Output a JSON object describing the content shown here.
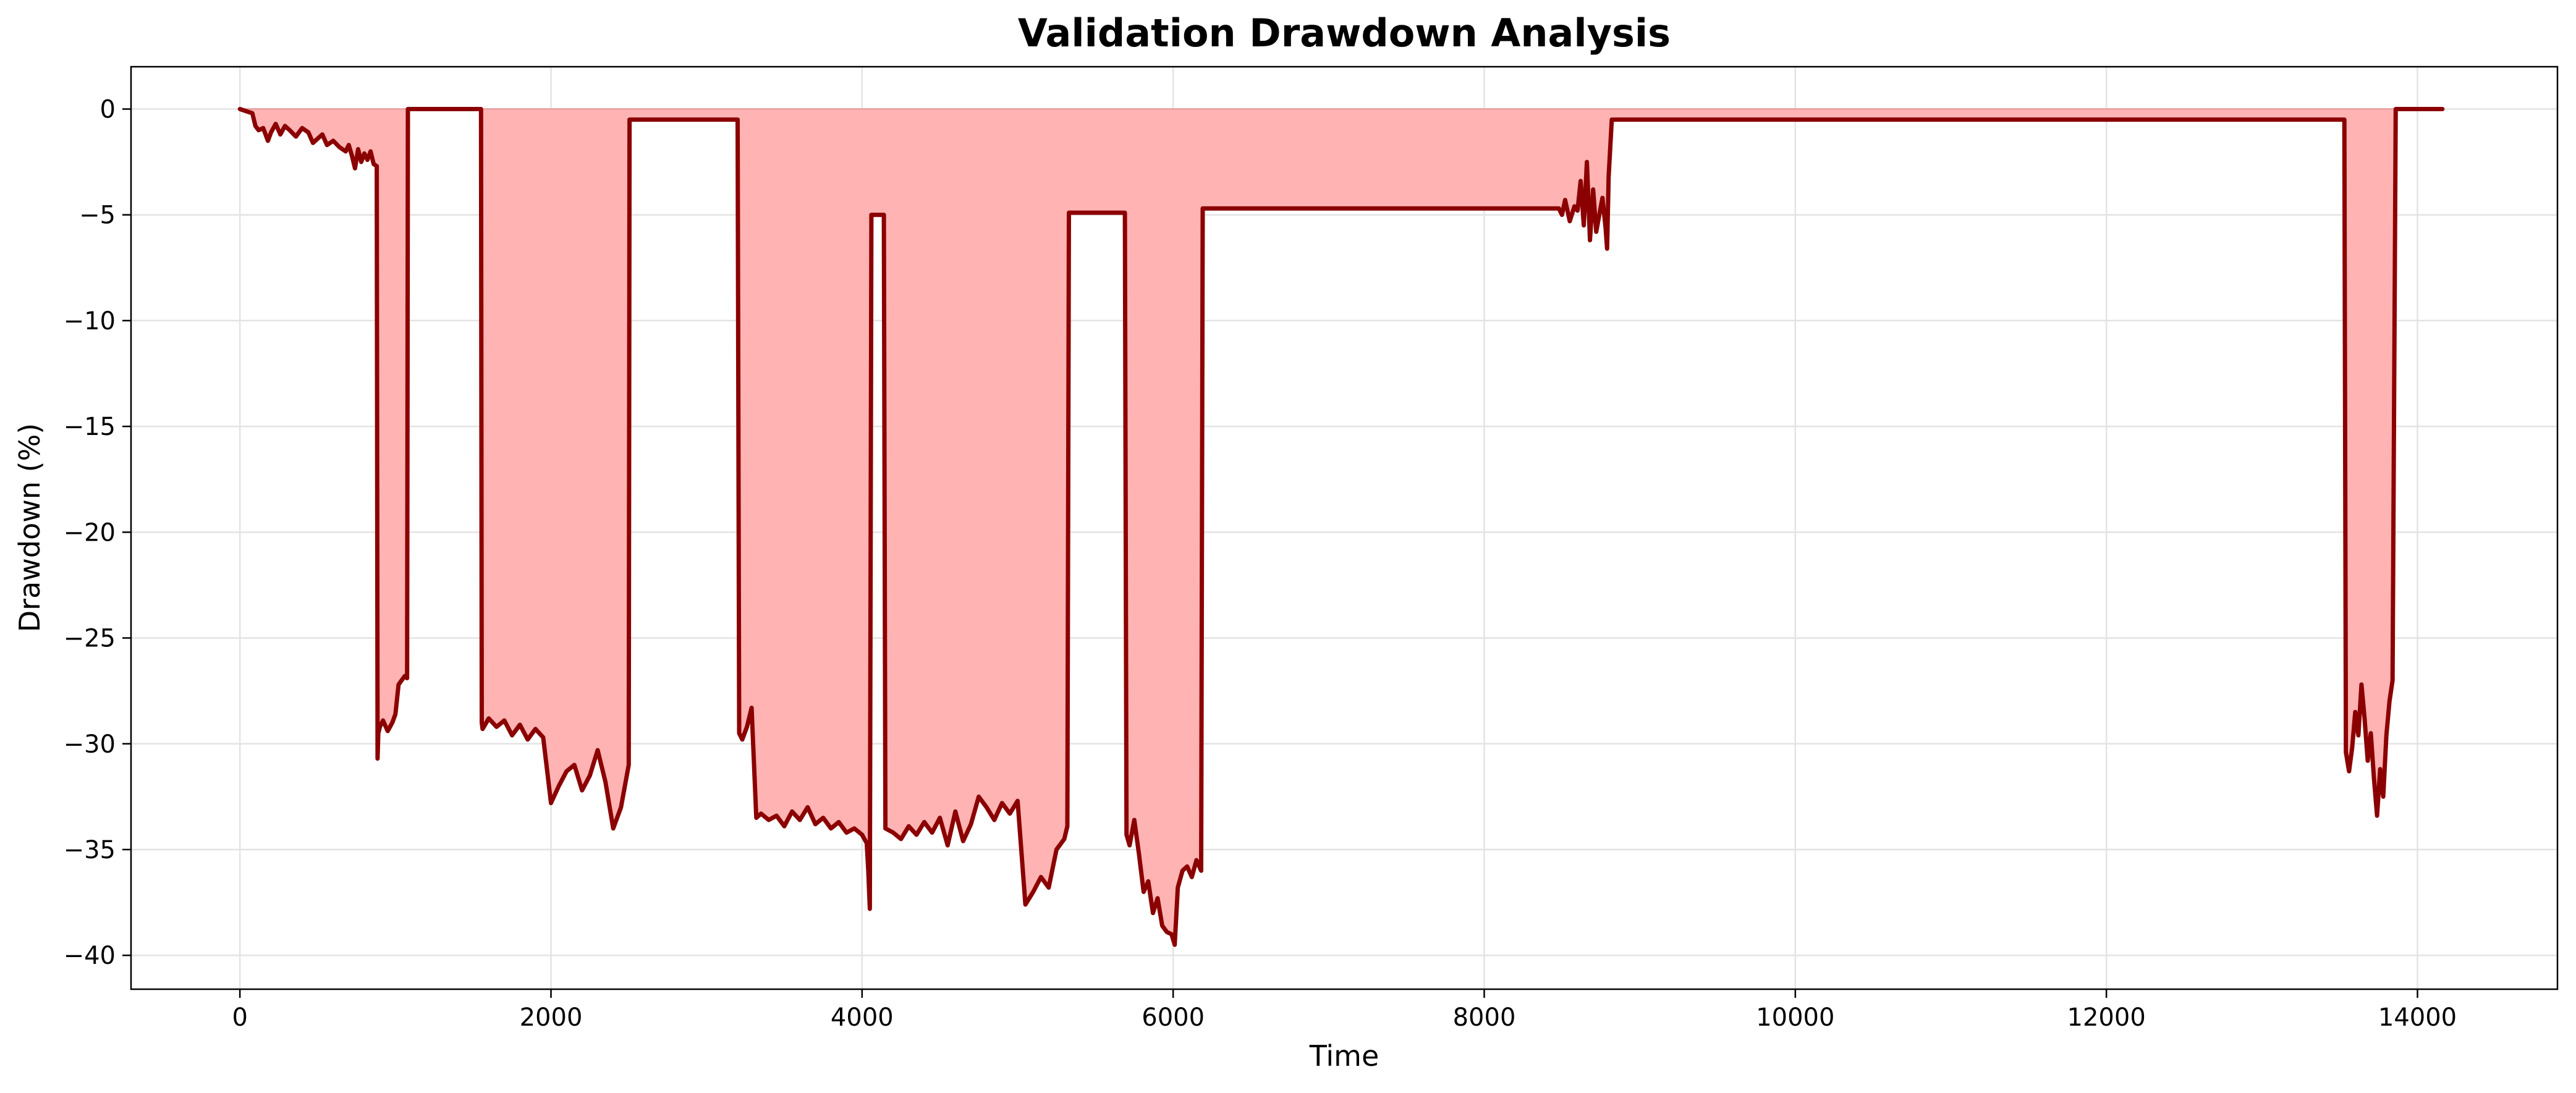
{
  "chart_data": {
    "type": "area",
    "title": "Validation Drawdown Analysis",
    "xlabel": "Time",
    "ylabel": "Drawdown (%)",
    "xlim": [
      -700,
      14900
    ],
    "ylim": [
      -41.6,
      2.0
    ],
    "xticks": [
      0,
      2000,
      4000,
      6000,
      8000,
      10000,
      12000,
      14000
    ],
    "xtick_labels": [
      "0",
      "2000",
      "4000",
      "6000",
      "8000",
      "10000",
      "12000",
      "14000"
    ],
    "yticks": [
      0,
      -5,
      -10,
      -15,
      -20,
      -25,
      -30,
      -35,
      -40
    ],
    "ytick_labels": [
      "0",
      "−5",
      "−10",
      "−15",
      "−20",
      "−25",
      "−30",
      "−35",
      "−40"
    ],
    "grid": true,
    "legend": "none",
    "colors": {
      "line": "#8b0000",
      "fill": "#ffb3b3"
    },
    "series": [
      {
        "x": [
          0,
          80,
          100,
          120,
          150,
          180,
          200,
          230,
          260,
          290,
          320,
          360,
          400,
          440,
          470,
          500,
          530,
          560,
          600,
          640,
          680,
          700,
          720,
          740,
          760,
          780,
          800,
          820,
          840,
          860,
          880,
          885,
          890,
          900,
          920,
          950,
          980,
          1000,
          1020,
          1040,
          1060,
          1075,
          1080,
          1085,
          1550,
          1555,
          1560,
          1600,
          1650,
          1700,
          1750,
          1800,
          1850,
          1900,
          1950,
          2000,
          2050,
          2100,
          2150,
          2200,
          2250,
          2300,
          2350,
          2400,
          2450,
          2500,
          2505,
          2510,
          3200,
          3210,
          3230,
          3260,
          3290,
          3320,
          3350,
          3400,
          3450,
          3500,
          3550,
          3600,
          3650,
          3700,
          3750,
          3800,
          3850,
          3900,
          3950,
          4000,
          4030,
          4040,
          4050,
          4060,
          4140,
          4150,
          4200,
          4250,
          4300,
          4350,
          4400,
          4450,
          4500,
          4550,
          4600,
          4650,
          4700,
          4750,
          4800,
          4850,
          4900,
          4950,
          5000,
          5050,
          5100,
          5150,
          5200,
          5250,
          5300,
          5320,
          5330,
          5680,
          5690,
          5700,
          5720,
          5750,
          5780,
          5810,
          5840,
          5870,
          5900,
          5930,
          5960,
          5990,
          6010,
          6030,
          6060,
          6090,
          6120,
          6150,
          6180,
          6190,
          6200,
          8480,
          8500,
          8520,
          8550,
          8580,
          8600,
          8620,
          8640,
          8660,
          8680,
          8700,
          8720,
          8740,
          8760,
          8780,
          8790,
          8800,
          8820,
          13520,
          13530,
          13540,
          13560,
          13580,
          13600,
          13620,
          13640,
          13660,
          13680,
          13700,
          13720,
          13740,
          13760,
          13780,
          13800,
          13820,
          13840,
          13860,
          13870,
          14160
        ],
        "y": [
          0,
          -0.2,
          -0.8,
          -1.0,
          -0.9,
          -1.5,
          -1.1,
          -0.7,
          -1.2,
          -0.8,
          -1.0,
          -1.3,
          -0.9,
          -1.1,
          -1.6,
          -1.4,
          -1.2,
          -1.7,
          -1.5,
          -1.8,
          -2.0,
          -1.7,
          -2.2,
          -2.8,
          -1.9,
          -2.5,
          -2.1,
          -2.4,
          -2.0,
          -2.6,
          -2.7,
          -30.7,
          -29.5,
          -29.2,
          -28.9,
          -29.4,
          -29.0,
          -28.6,
          -27.2,
          -27.0,
          -26.8,
          -26.9,
          0,
          0,
          0,
          -29.0,
          -29.3,
          -28.8,
          -29.2,
          -28.9,
          -29.6,
          -29.1,
          -29.8,
          -29.3,
          -29.7,
          -32.8,
          -32.0,
          -31.3,
          -31.0,
          -32.2,
          -31.5,
          -30.3,
          -31.8,
          -34.0,
          -33.0,
          -31.0,
          -0.5,
          -0.5,
          -0.5,
          -29.5,
          -29.8,
          -29.2,
          -28.3,
          -33.5,
          -33.3,
          -33.6,
          -33.4,
          -33.9,
          -33.2,
          -33.6,
          -33.0,
          -33.8,
          -33.5,
          -34.0,
          -33.7,
          -34.2,
          -34.0,
          -34.3,
          -34.7,
          -36.0,
          -37.8,
          -5.0,
          -5.0,
          -34.0,
          -34.2,
          -34.5,
          -33.9,
          -34.3,
          -33.7,
          -34.2,
          -33.5,
          -34.8,
          -33.2,
          -34.6,
          -33.8,
          -32.5,
          -33.0,
          -33.6,
          -32.8,
          -33.3,
          -32.7,
          -37.6,
          -37.0,
          -36.3,
          -36.8,
          -35.0,
          -34.5,
          -33.9,
          -4.9,
          -4.9,
          -4.9,
          -34.3,
          -34.8,
          -33.6,
          -35.2,
          -37.0,
          -36.5,
          -38.0,
          -37.3,
          -38.6,
          -38.9,
          -39.0,
          -39.5,
          -36.8,
          -36.0,
          -35.8,
          -36.3,
          -35.5,
          -36.0,
          -4.7,
          -4.7,
          -4.7,
          -5.0,
          -4.3,
          -5.3,
          -4.6,
          -4.8,
          -3.4,
          -5.5,
          -2.5,
          -6.2,
          -3.8,
          -5.8,
          -5.0,
          -4.2,
          -5.6,
          -6.6,
          -3.2,
          -0.5,
          -0.5,
          -0.5,
          -30.4,
          -31.3,
          -30.2,
          -28.5,
          -29.6,
          -27.2,
          -28.8,
          -30.8,
          -29.5,
          -31.6,
          -33.4,
          -31.2,
          -32.5,
          -29.6,
          -28.0,
          -27.0,
          0,
          0,
          0
        ]
      }
    ]
  }
}
